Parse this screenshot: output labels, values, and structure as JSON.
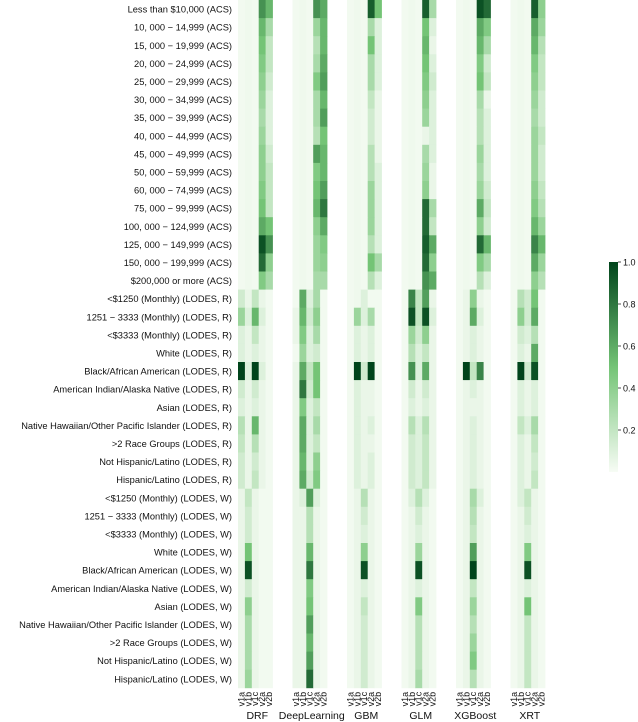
{
  "chart_data": {
    "type": "heatmap",
    "title": "",
    "xlabel": "",
    "ylabel": "",
    "groups": [
      {
        "name": "DRF",
        "columns": [
          "v1a",
          "v1b",
          "v1c",
          "v2a",
          "v2b"
        ]
      },
      {
        "name": "DeepLearning",
        "columns": [
          "v1a",
          "v1b",
          "v1c",
          "v2a",
          "v2b"
        ]
      },
      {
        "name": "GBM",
        "columns": [
          "v1a",
          "v1b",
          "v1c",
          "v2a",
          "v2b"
        ]
      },
      {
        "name": "GLM",
        "columns": [
          "v1a",
          "v1b",
          "v1c",
          "v2a",
          "v2b"
        ]
      },
      {
        "name": "XGBoost",
        "columns": [
          "v1a",
          "v1b",
          "v1c",
          "v2a",
          "v2b"
        ]
      },
      {
        "name": "XRT",
        "columns": [
          "v1a",
          "v1b",
          "v1c",
          "v2a",
          "v2b"
        ]
      }
    ],
    "rows": [
      "Less than $10,000 (ACS)",
      "10, 000 − 14,999 (ACS)",
      "15, 000 − 19,999 (ACS)",
      "20, 000 − 24,999 (ACS)",
      "25, 000 − 29,999 (ACS)",
      "30, 000 − 34,999 (ACS)",
      "35, 000 − 39,999 (ACS)",
      "40, 000 − 44,999 (ACS)",
      "45, 000 − 49,999 (ACS)",
      "50, 000 − 59,999 (ACS)",
      "60, 000 − 74,999 (ACS)",
      "75, 000 − 99,999 (ACS)",
      "100, 000 − 124,999 (ACS)",
      "125, 000 − 149,999 (ACS)",
      "150, 000 − 199,999 (ACS)",
      "$200,000 or more (ACS)",
      "<$1250 (Monthly) (LODES, R)",
      "1251 − 3333 (Monthly) (LODES, R)",
      "<$3333 (Monthly) (LODES, R)",
      "White (LODES, R)",
      "Black/African American (LODES, R)",
      "American Indian/Alaska Native (LODES, R)",
      "Asian (LODES, R)",
      "Native Hawaiian/Other Pacific Islander (LODES, R)",
      ">2 Race Groups (LODES, R)",
      "Not Hispanic/Latino (LODES, R)",
      "Hispanic/Latino (LODES, R)",
      "<$1250 (Monthly) (LODES, W)",
      "1251 − 3333 (Monthly) (LODES, W)",
      "<$3333 (Monthly) (LODES, W)",
      "White (LODES, W)",
      "Black/African American (LODES, W)",
      "American Indian/Alaska Native (LODES, W)",
      "Asian (LODES, W)",
      "Native Hawaiian/Other Pacific Islander (LODES, W)",
      ">2 Race Groups (LODES, W)",
      "Not Hispanic/Latino (LODES, W)",
      "Hispanic/Latino (LODES, W)"
    ],
    "values": [
      [
        0.02,
        0.03,
        0.02,
        0.7,
        0.55,
        0.02,
        0.03,
        0.02,
        0.7,
        0.6,
        0.02,
        0.03,
        0.02,
        0.9,
        0.5,
        0.02,
        0.03,
        0.02,
        0.9,
        0.3,
        0.02,
        0.03,
        0.02,
        0.95,
        0.85,
        0.02,
        0.03,
        0.02,
        0.9,
        0.4
      ],
      [
        0.02,
        0.03,
        0.02,
        0.55,
        0.3,
        0.02,
        0.03,
        0.02,
        0.35,
        0.55,
        0.02,
        0.03,
        0.02,
        0.3,
        0.1,
        0.02,
        0.03,
        0.02,
        0.5,
        0.1,
        0.02,
        0.03,
        0.02,
        0.6,
        0.45,
        0.02,
        0.03,
        0.02,
        0.6,
        0.35
      ],
      [
        0.02,
        0.03,
        0.02,
        0.5,
        0.2,
        0.02,
        0.03,
        0.02,
        0.25,
        0.55,
        0.02,
        0.03,
        0.02,
        0.5,
        0.1,
        0.02,
        0.03,
        0.02,
        0.55,
        0.05,
        0.02,
        0.03,
        0.02,
        0.55,
        0.3,
        0.02,
        0.03,
        0.02,
        0.55,
        0.25
      ],
      [
        0.02,
        0.03,
        0.02,
        0.45,
        0.2,
        0.02,
        0.03,
        0.02,
        0.3,
        0.6,
        0.02,
        0.03,
        0.02,
        0.3,
        0.1,
        0.02,
        0.03,
        0.02,
        0.5,
        0.1,
        0.02,
        0.03,
        0.02,
        0.45,
        0.15,
        0.02,
        0.03,
        0.02,
        0.45,
        0.2
      ],
      [
        0.02,
        0.03,
        0.02,
        0.4,
        0.15,
        0.02,
        0.03,
        0.02,
        0.45,
        0.65,
        0.02,
        0.03,
        0.02,
        0.3,
        0.1,
        0.02,
        0.03,
        0.02,
        0.45,
        0.15,
        0.02,
        0.03,
        0.02,
        0.5,
        0.2,
        0.02,
        0.03,
        0.02,
        0.4,
        0.2
      ],
      [
        0.02,
        0.03,
        0.02,
        0.35,
        0.1,
        0.02,
        0.03,
        0.02,
        0.3,
        0.55,
        0.02,
        0.03,
        0.02,
        0.2,
        0.05,
        0.02,
        0.03,
        0.02,
        0.4,
        0.1,
        0.02,
        0.03,
        0.02,
        0.3,
        0.05,
        0.02,
        0.03,
        0.02,
        0.35,
        0.15
      ],
      [
        0.02,
        0.03,
        0.02,
        0.3,
        0.1,
        0.02,
        0.03,
        0.02,
        0.3,
        0.65,
        0.02,
        0.03,
        0.02,
        0.15,
        0.05,
        0.02,
        0.03,
        0.02,
        0.35,
        0.1,
        0.02,
        0.03,
        0.02,
        0.25,
        0.1,
        0.02,
        0.03,
        0.02,
        0.3,
        0.15
      ],
      [
        0.02,
        0.03,
        0.02,
        0.35,
        0.1,
        0.02,
        0.03,
        0.02,
        0.25,
        0.5,
        0.02,
        0.03,
        0.02,
        0.15,
        0.05,
        0.02,
        0.03,
        0.02,
        0.05,
        0.1,
        0.02,
        0.03,
        0.02,
        0.25,
        0.1,
        0.02,
        0.03,
        0.02,
        0.35,
        0.2
      ],
      [
        0.02,
        0.03,
        0.02,
        0.4,
        0.15,
        0.02,
        0.03,
        0.02,
        0.65,
        0.55,
        0.02,
        0.03,
        0.02,
        0.25,
        0.05,
        0.02,
        0.03,
        0.02,
        0.3,
        0.1,
        0.02,
        0.03,
        0.02,
        0.35,
        0.1,
        0.02,
        0.03,
        0.02,
        0.35,
        0.15
      ],
      [
        0.02,
        0.03,
        0.02,
        0.4,
        0.2,
        0.02,
        0.03,
        0.02,
        0.45,
        0.55,
        0.02,
        0.03,
        0.02,
        0.25,
        0.1,
        0.02,
        0.03,
        0.02,
        0.35,
        0.05,
        0.02,
        0.03,
        0.02,
        0.3,
        0.1,
        0.02,
        0.03,
        0.02,
        0.35,
        0.15
      ],
      [
        0.02,
        0.03,
        0.02,
        0.45,
        0.2,
        0.02,
        0.03,
        0.02,
        0.5,
        0.65,
        0.02,
        0.03,
        0.02,
        0.35,
        0.1,
        0.02,
        0.03,
        0.02,
        0.4,
        0.05,
        0.02,
        0.03,
        0.02,
        0.35,
        0.15,
        0.02,
        0.03,
        0.02,
        0.4,
        0.2
      ],
      [
        0.02,
        0.03,
        0.02,
        0.5,
        0.2,
        0.02,
        0.03,
        0.02,
        0.55,
        0.8,
        0.02,
        0.03,
        0.02,
        0.35,
        0.1,
        0.02,
        0.03,
        0.02,
        0.85,
        0.3,
        0.02,
        0.03,
        0.02,
        0.6,
        0.2,
        0.02,
        0.03,
        0.02,
        0.45,
        0.25
      ],
      [
        0.02,
        0.03,
        0.02,
        0.6,
        0.5,
        0.02,
        0.03,
        0.02,
        0.4,
        0.6,
        0.02,
        0.03,
        0.02,
        0.35,
        0.1,
        0.02,
        0.03,
        0.02,
        0.85,
        0.2,
        0.02,
        0.03,
        0.02,
        0.4,
        0.15,
        0.02,
        0.03,
        0.02,
        0.55,
        0.35
      ],
      [
        0.02,
        0.03,
        0.02,
        0.95,
        0.7,
        0.02,
        0.03,
        0.02,
        0.35,
        0.45,
        0.02,
        0.03,
        0.02,
        0.25,
        0.1,
        0.02,
        0.03,
        0.02,
        0.9,
        0.6,
        0.02,
        0.03,
        0.02,
        0.85,
        0.55,
        0.02,
        0.03,
        0.02,
        0.75,
        0.55
      ],
      [
        0.02,
        0.03,
        0.02,
        0.85,
        0.4,
        0.02,
        0.03,
        0.02,
        0.35,
        0.4,
        0.02,
        0.03,
        0.02,
        0.5,
        0.3,
        0.02,
        0.03,
        0.02,
        0.85,
        0.4,
        0.02,
        0.03,
        0.02,
        0.45,
        0.3,
        0.02,
        0.03,
        0.02,
        0.6,
        0.35
      ],
      [
        0.02,
        0.03,
        0.02,
        0.45,
        0.3,
        0.02,
        0.03,
        0.02,
        0.3,
        0.3,
        0.02,
        0.03,
        0.02,
        0.25,
        0.1,
        0.02,
        0.03,
        0.02,
        0.7,
        0.6,
        0.02,
        0.03,
        0.02,
        0.25,
        0.1,
        0.02,
        0.03,
        0.02,
        0.4,
        0.25
      ],
      [
        0.15,
        0.05,
        0.2,
        0.05,
        0.02,
        0.02,
        0.6,
        0.1,
        0.3,
        0.02,
        0.02,
        0.03,
        0.1,
        0.02,
        0.02,
        0.02,
        0.75,
        0.2,
        0.65,
        0.05,
        0.02,
        0.05,
        0.4,
        0.05,
        0.02,
        0.02,
        0.25,
        0.15,
        0.5,
        0.02
      ],
      [
        0.35,
        0.1,
        0.55,
        0.1,
        0.02,
        0.05,
        0.55,
        0.15,
        0.4,
        0.02,
        0.02,
        0.35,
        0.1,
        0.3,
        0.02,
        0.02,
        0.95,
        0.2,
        0.95,
        0.1,
        0.02,
        0.05,
        0.6,
        0.1,
        0.02,
        0.02,
        0.4,
        0.15,
        0.6,
        0.02
      ],
      [
        0.1,
        0.05,
        0.2,
        0.05,
        0.02,
        0.05,
        0.45,
        0.1,
        0.3,
        0.02,
        0.02,
        0.1,
        0.05,
        0.1,
        0.02,
        0.02,
        0.35,
        0.15,
        0.4,
        0.05,
        0.02,
        0.05,
        0.1,
        0.05,
        0.02,
        0.02,
        0.15,
        0.1,
        0.25,
        0.02
      ],
      [
        0.1,
        0.05,
        0.1,
        0.05,
        0.02,
        0.02,
        0.35,
        0.1,
        0.15,
        0.02,
        0.02,
        0.1,
        0.05,
        0.1,
        0.02,
        0.02,
        0.25,
        0.1,
        0.2,
        0.05,
        0.02,
        0.05,
        0.1,
        0.05,
        0.02,
        0.02,
        0.1,
        0.05,
        0.6,
        0.02
      ],
      [
        1.0,
        0.1,
        1.0,
        0.1,
        0.02,
        0.05,
        0.6,
        0.2,
        0.5,
        0.02,
        0.02,
        1.0,
        0.15,
        1.0,
        0.02,
        0.02,
        0.7,
        0.1,
        0.6,
        0.05,
        0.02,
        1.0,
        0.2,
        0.75,
        0.02,
        0.02,
        1.0,
        0.15,
        0.95,
        0.02
      ],
      [
        0.15,
        0.05,
        0.15,
        0.05,
        0.02,
        0.05,
        0.8,
        0.15,
        0.5,
        0.02,
        0.02,
        0.1,
        0.05,
        0.05,
        0.02,
        0.02,
        0.15,
        0.05,
        0.15,
        0.05,
        0.02,
        0.05,
        0.1,
        0.05,
        0.02,
        0.02,
        0.1,
        0.05,
        0.1,
        0.02
      ],
      [
        0.1,
        0.05,
        0.1,
        0.05,
        0.02,
        0.05,
        0.45,
        0.1,
        0.2,
        0.02,
        0.02,
        0.1,
        0.05,
        0.05,
        0.02,
        0.02,
        0.1,
        0.05,
        0.1,
        0.05,
        0.02,
        0.05,
        0.05,
        0.05,
        0.02,
        0.02,
        0.1,
        0.05,
        0.1,
        0.02
      ],
      [
        0.25,
        0.05,
        0.55,
        0.05,
        0.02,
        0.05,
        0.6,
        0.1,
        0.3,
        0.02,
        0.02,
        0.1,
        0.05,
        0.1,
        0.02,
        0.02,
        0.25,
        0.1,
        0.25,
        0.05,
        0.02,
        0.05,
        0.1,
        0.05,
        0.02,
        0.02,
        0.2,
        0.1,
        0.3,
        0.02
      ],
      [
        0.2,
        0.05,
        0.25,
        0.05,
        0.02,
        0.05,
        0.6,
        0.1,
        0.2,
        0.02,
        0.02,
        0.1,
        0.05,
        0.05,
        0.02,
        0.02,
        0.15,
        0.1,
        0.2,
        0.05,
        0.02,
        0.05,
        0.1,
        0.05,
        0.02,
        0.02,
        0.1,
        0.05,
        0.2,
        0.02
      ],
      [
        0.15,
        0.05,
        0.15,
        0.05,
        0.02,
        0.05,
        0.55,
        0.1,
        0.4,
        0.02,
        0.02,
        0.1,
        0.05,
        0.1,
        0.02,
        0.02,
        0.15,
        0.1,
        0.2,
        0.05,
        0.02,
        0.05,
        0.1,
        0.05,
        0.02,
        0.02,
        0.1,
        0.05,
        0.15,
        0.02
      ],
      [
        0.15,
        0.05,
        0.2,
        0.05,
        0.02,
        0.05,
        0.6,
        0.15,
        0.45,
        0.02,
        0.02,
        0.1,
        0.05,
        0.1,
        0.02,
        0.02,
        0.15,
        0.1,
        0.2,
        0.05,
        0.02,
        0.05,
        0.1,
        0.05,
        0.02,
        0.02,
        0.1,
        0.05,
        0.2,
        0.02
      ],
      [
        0.05,
        0.2,
        0.05,
        0.02,
        0.02,
        0.05,
        0.1,
        0.65,
        0.1,
        0.02,
        0.02,
        0.05,
        0.25,
        0.05,
        0.02,
        0.02,
        0.1,
        0.25,
        0.1,
        0.02,
        0.02,
        0.05,
        0.3,
        0.1,
        0.02,
        0.02,
        0.1,
        0.2,
        0.05,
        0.02
      ],
      [
        0.05,
        0.15,
        0.05,
        0.02,
        0.02,
        0.05,
        0.05,
        0.25,
        0.05,
        0.02,
        0.02,
        0.05,
        0.15,
        0.05,
        0.02,
        0.02,
        0.05,
        0.15,
        0.05,
        0.02,
        0.02,
        0.05,
        0.25,
        0.05,
        0.02,
        0.02,
        0.05,
        0.15,
        0.05,
        0.02
      ],
      [
        0.05,
        0.15,
        0.05,
        0.02,
        0.02,
        0.05,
        0.05,
        0.25,
        0.05,
        0.02,
        0.02,
        0.05,
        0.1,
        0.05,
        0.02,
        0.02,
        0.05,
        0.1,
        0.05,
        0.02,
        0.02,
        0.05,
        0.2,
        0.05,
        0.02,
        0.02,
        0.05,
        0.1,
        0.05,
        0.02
      ],
      [
        0.05,
        0.5,
        0.05,
        0.02,
        0.02,
        0.05,
        0.05,
        0.55,
        0.05,
        0.02,
        0.02,
        0.05,
        0.4,
        0.05,
        0.02,
        0.02,
        0.05,
        0.35,
        0.05,
        0.02,
        0.02,
        0.05,
        0.65,
        0.05,
        0.02,
        0.02,
        0.05,
        0.45,
        0.05,
        0.02
      ],
      [
        0.05,
        0.95,
        0.05,
        0.02,
        0.02,
        0.05,
        0.05,
        0.8,
        0.05,
        0.02,
        0.02,
        0.05,
        0.95,
        0.05,
        0.02,
        0.02,
        0.05,
        0.95,
        0.05,
        0.02,
        0.02,
        0.05,
        1.0,
        0.05,
        0.02,
        0.02,
        0.05,
        0.95,
        0.05,
        0.02
      ],
      [
        0.05,
        0.15,
        0.05,
        0.02,
        0.02,
        0.05,
        0.05,
        0.45,
        0.05,
        0.02,
        0.02,
        0.05,
        0.1,
        0.05,
        0.02,
        0.02,
        0.05,
        0.1,
        0.05,
        0.02,
        0.02,
        0.05,
        0.2,
        0.05,
        0.02,
        0.02,
        0.05,
        0.1,
        0.05,
        0.02
      ],
      [
        0.05,
        0.4,
        0.05,
        0.02,
        0.02,
        0.05,
        0.05,
        0.5,
        0.05,
        0.02,
        0.02,
        0.05,
        0.2,
        0.05,
        0.02,
        0.02,
        0.05,
        0.45,
        0.05,
        0.02,
        0.02,
        0.05,
        0.35,
        0.05,
        0.02,
        0.02,
        0.05,
        0.5,
        0.05,
        0.02
      ],
      [
        0.05,
        0.3,
        0.05,
        0.02,
        0.02,
        0.05,
        0.05,
        0.65,
        0.05,
        0.02,
        0.02,
        0.05,
        0.15,
        0.05,
        0.02,
        0.02,
        0.05,
        0.25,
        0.05,
        0.02,
        0.02,
        0.05,
        0.25,
        0.05,
        0.02,
        0.02,
        0.05,
        0.2,
        0.05,
        0.02
      ],
      [
        0.05,
        0.3,
        0.05,
        0.02,
        0.02,
        0.05,
        0.05,
        0.55,
        0.05,
        0.02,
        0.02,
        0.05,
        0.15,
        0.05,
        0.02,
        0.02,
        0.05,
        0.25,
        0.05,
        0.02,
        0.02,
        0.05,
        0.35,
        0.05,
        0.02,
        0.02,
        0.05,
        0.2,
        0.05,
        0.02
      ],
      [
        0.05,
        0.3,
        0.05,
        0.02,
        0.02,
        0.05,
        0.05,
        0.65,
        0.05,
        0.02,
        0.02,
        0.05,
        0.15,
        0.05,
        0.02,
        0.02,
        0.05,
        0.25,
        0.05,
        0.02,
        0.02,
        0.05,
        0.45,
        0.05,
        0.02,
        0.02,
        0.05,
        0.2,
        0.05,
        0.02
      ],
      [
        0.05,
        0.35,
        0.05,
        0.02,
        0.02,
        0.05,
        0.05,
        0.85,
        0.05,
        0.02,
        0.02,
        0.05,
        0.15,
        0.05,
        0.02,
        0.02,
        0.05,
        0.3,
        0.05,
        0.02,
        0.02,
        0.05,
        0.25,
        0.05,
        0.02,
        0.02,
        0.05,
        0.2,
        0.05,
        0.02
      ]
    ],
    "colorbar": {
      "range": [
        0,
        1.0
      ],
      "ticks": [
        "0.2",
        "0.4",
        "0.6",
        "0.8",
        "1.0"
      ],
      "tick_values": [
        0.2,
        0.4,
        0.6,
        0.8,
        1.0
      ]
    },
    "colormap": {
      "low": "#f7fcf5",
      "mid": "#74c476",
      "high": "#00441b"
    },
    "legend": "none",
    "grid": false
  }
}
